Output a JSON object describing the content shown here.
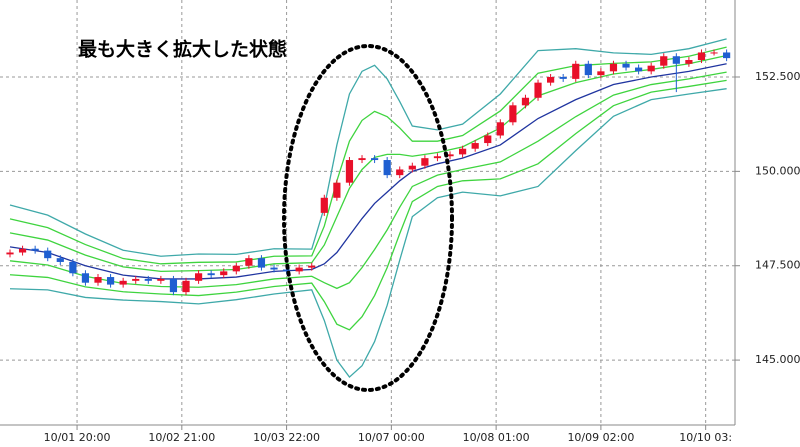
{
  "chart_data": {
    "type": "candlestick",
    "annotation": "最も大きく拡大した状態",
    "up_color": "#e8102a",
    "down_color": "#1f5fd1",
    "xlim": [
      0,
      173
    ],
    "ylim": [
      143.28,
      154.54
    ],
    "grid": true,
    "xticks": [
      {
        "value": 16,
        "label": "10/01 20:00"
      },
      {
        "value": 41,
        "label": "10/02 21:00"
      },
      {
        "value": 66,
        "label": "10/03 22:00"
      },
      {
        "value": 91,
        "label": "10/07 00:00"
      },
      {
        "value": 116,
        "label": "10/08 01:00"
      },
      {
        "value": 141,
        "label": "10/09 02:00"
      },
      {
        "value": 166,
        "label": "10/10 03:"
      }
    ],
    "yticks": [
      {
        "value": 145,
        "label": "145.000"
      },
      {
        "value": 147.5,
        "label": "147.500"
      },
      {
        "value": 150,
        "label": "150.000"
      },
      {
        "value": 152.5,
        "label": "152.500"
      }
    ],
    "candles": {
      "x": [
        0,
        3,
        6,
        9,
        12,
        15,
        18,
        21,
        24,
        27,
        30,
        33,
        36,
        39,
        42,
        45,
        48,
        51,
        54,
        57,
        60,
        63,
        66,
        69,
        72,
        75,
        78,
        81,
        84,
        87,
        90,
        93,
        96,
        99,
        102,
        105,
        108,
        111,
        114,
        117,
        120,
        123,
        126,
        129,
        132,
        135,
        138,
        141,
        144,
        147,
        150,
        153,
        156,
        159,
        162,
        165,
        168,
        171
      ],
      "open": [
        147.8,
        147.85,
        147.95,
        147.9,
        147.7,
        147.6,
        147.3,
        147.05,
        147.2,
        147.0,
        147.1,
        147.15,
        147.1,
        147.15,
        146.8,
        147.1,
        147.3,
        147.25,
        147.35,
        147.5,
        147.7,
        147.45,
        147.4,
        147.35,
        147.45,
        148.9,
        149.3,
        149.7,
        150.3,
        150.35,
        150.3,
        149.9,
        150.05,
        150.15,
        150.35,
        150.4,
        150.45,
        150.6,
        150.75,
        150.95,
        151.3,
        151.75,
        151.95,
        152.35,
        152.5,
        152.45,
        152.85,
        152.55,
        152.65,
        152.85,
        152.75,
        152.65,
        152.8,
        153.05,
        152.85,
        152.95,
        153.15,
        153.15
      ],
      "high": [
        147.93,
        148.03,
        148.03,
        147.98,
        147.78,
        147.68,
        147.38,
        147.28,
        147.28,
        147.18,
        147.23,
        147.23,
        147.23,
        147.23,
        147.18,
        147.38,
        147.38,
        147.43,
        147.58,
        147.78,
        147.78,
        147.53,
        147.48,
        147.53,
        147.58,
        149.38,
        149.78,
        150.38,
        150.43,
        150.43,
        150.38,
        150.13,
        150.23,
        150.43,
        150.48,
        150.53,
        150.68,
        150.83,
        151.03,
        151.38,
        151.83,
        152.03,
        152.43,
        152.58,
        152.58,
        152.93,
        152.93,
        152.73,
        152.93,
        152.93,
        152.83,
        152.88,
        153.13,
        153.13,
        153.03,
        153.23,
        153.23,
        153.23
      ],
      "low": [
        147.72,
        147.77,
        147.82,
        147.62,
        147.52,
        147.22,
        146.97,
        146.97,
        146.92,
        146.92,
        147.02,
        147.02,
        147.02,
        146.72,
        146.72,
        147.02,
        147.17,
        147.17,
        147.27,
        147.42,
        147.37,
        147.32,
        147.27,
        147.27,
        147.37,
        148.82,
        149.22,
        149.62,
        150.22,
        150.22,
        149.82,
        149.82,
        149.97,
        150.07,
        150.27,
        150.32,
        150.37,
        150.52,
        150.67,
        150.87,
        151.22,
        151.67,
        151.87,
        152.27,
        152.37,
        152.37,
        152.47,
        152.47,
        152.57,
        152.67,
        152.57,
        152.57,
        152.72,
        152.1,
        152.77,
        152.87,
        153.07,
        152.92
      ],
      "close": [
        147.85,
        147.95,
        147.9,
        147.7,
        147.6,
        147.3,
        147.05,
        147.2,
        147.0,
        147.1,
        147.15,
        147.1,
        147.15,
        146.8,
        147.1,
        147.3,
        147.25,
        147.35,
        147.5,
        147.7,
        147.45,
        147.4,
        147.35,
        147.45,
        147.5,
        149.3,
        149.7,
        150.3,
        150.35,
        150.3,
        149.9,
        150.05,
        150.15,
        150.35,
        150.4,
        150.45,
        150.6,
        150.75,
        150.95,
        151.3,
        151.75,
        151.95,
        152.35,
        152.5,
        152.45,
        152.85,
        152.55,
        152.65,
        152.85,
        152.75,
        152.65,
        152.8,
        153.05,
        152.85,
        152.95,
        153.15,
        153.15,
        153.0
      ]
    },
    "band_x": [
      0,
      9,
      18,
      27,
      36,
      45,
      54,
      63,
      72,
      75,
      78,
      81,
      84,
      87,
      90,
      93,
      96,
      102,
      108,
      117,
      126,
      135,
      144,
      153,
      162,
      171
    ],
    "series": [
      {
        "color": "#3fa9a9",
        "values": [
          149.11,
          148.84,
          148.34,
          147.91,
          147.75,
          147.81,
          147.8,
          147.95,
          147.94,
          149.05,
          150.7,
          152.05,
          152.65,
          152.81,
          152.45,
          151.85,
          151.2,
          151.1,
          151.25,
          152.05,
          153.2,
          153.25,
          153.14,
          153.1,
          153.25,
          153.51
        ]
      },
      {
        "color": "#3fd43f",
        "values": [
          148.74,
          148.51,
          148.06,
          147.69,
          147.55,
          147.59,
          147.6,
          147.75,
          147.76,
          148.55,
          149.75,
          150.8,
          151.35,
          151.59,
          151.45,
          151.15,
          150.8,
          150.8,
          150.95,
          151.6,
          152.6,
          152.8,
          152.86,
          152.9,
          153.05,
          153.29
        ]
      },
      {
        "color": "#3fd43f",
        "values": [
          148.37,
          148.18,
          147.78,
          147.47,
          147.35,
          147.37,
          147.4,
          147.55,
          147.58,
          148.05,
          148.8,
          149.55,
          150.05,
          150.37,
          150.45,
          150.45,
          150.4,
          150.5,
          150.65,
          151.15,
          152.0,
          152.35,
          152.58,
          152.7,
          152.85,
          153.07
        ]
      },
      {
        "color": "#2035a0",
        "values": [
          148.0,
          147.85,
          147.5,
          147.25,
          147.15,
          147.15,
          147.2,
          147.35,
          147.4,
          147.55,
          147.85,
          148.3,
          148.75,
          149.15,
          149.45,
          149.75,
          150.0,
          150.2,
          150.35,
          150.7,
          151.4,
          151.9,
          152.3,
          152.5,
          152.65,
          152.85
        ]
      },
      {
        "color": "#3fd43f",
        "values": [
          147.63,
          147.52,
          147.22,
          147.03,
          146.95,
          146.93,
          147.0,
          147.15,
          147.22,
          147.05,
          146.9,
          147.05,
          147.45,
          147.93,
          148.45,
          149.05,
          149.6,
          149.9,
          150.05,
          150.25,
          150.8,
          151.45,
          152.02,
          152.3,
          152.45,
          152.63
        ]
      },
      {
        "color": "#3fd43f",
        "values": [
          147.26,
          147.19,
          146.94,
          146.81,
          146.75,
          146.71,
          146.8,
          146.95,
          147.04,
          146.55,
          145.95,
          145.8,
          146.15,
          146.71,
          147.45,
          148.35,
          149.2,
          149.6,
          149.75,
          149.8,
          150.2,
          151.0,
          151.74,
          152.1,
          152.25,
          152.41
        ]
      },
      {
        "color": "#3fa9a9",
        "values": [
          146.89,
          146.86,
          146.66,
          146.59,
          146.55,
          146.49,
          146.6,
          146.75,
          146.86,
          146.05,
          145.0,
          144.55,
          144.85,
          145.49,
          146.45,
          147.65,
          148.8,
          149.3,
          149.45,
          149.35,
          149.6,
          150.55,
          151.46,
          151.9,
          152.05,
          152.19
        ]
      }
    ]
  }
}
